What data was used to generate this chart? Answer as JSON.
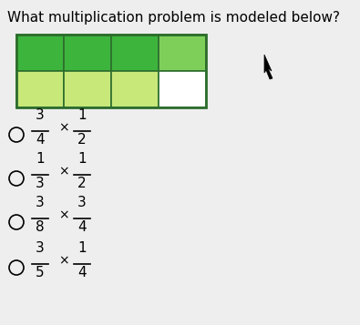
{
  "title": "What multiplication problem is modeled below?",
  "title_fontsize": 11,
  "background_color": "#eeeeee",
  "grid_cols": 4,
  "grid_rows": 2,
  "colors": {
    "dark_green": "#3db53d",
    "medium_green": "#7dcf5a",
    "light_green": "#c8e87a",
    "white": "#ffffff",
    "border": "#2d6e2d"
  },
  "cell_colors": [
    [
      "dark_green",
      "dark_green",
      "dark_green",
      "medium_green"
    ],
    [
      "light_green",
      "light_green",
      "light_green",
      "white"
    ]
  ],
  "options": [
    {
      "num1": "3",
      "den1": "4",
      "num2": "1",
      "den2": "2"
    },
    {
      "num1": "1",
      "den1": "3",
      "num2": "1",
      "den2": "2"
    },
    {
      "num1": "3",
      "den1": "8",
      "num2": "3",
      "den2": "4"
    },
    {
      "num1": "3",
      "den1": "5",
      "num2": "1",
      "den2": "4"
    }
  ]
}
